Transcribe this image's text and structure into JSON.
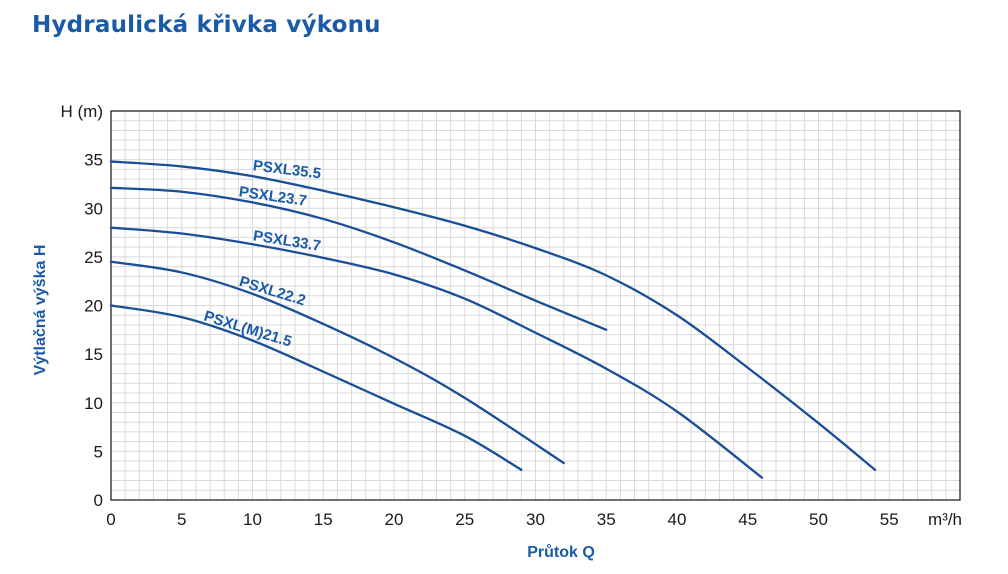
{
  "page": {
    "title": "Hydraulická křivka výkonu"
  },
  "chart_data": {
    "type": "line",
    "xlabel": "Průtok Q",
    "xunit": "m³/h",
    "ylabel": "Výtlačná výška H",
    "yunit": "H (m)",
    "xlim": [
      0,
      60
    ],
    "ylim": [
      0,
      40
    ],
    "x_ticks": [
      0,
      5,
      10,
      15,
      20,
      25,
      30,
      35,
      40,
      45,
      50,
      55
    ],
    "y_ticks": [
      0,
      5,
      10,
      15,
      20,
      25,
      30,
      35
    ],
    "grid": true,
    "minor_grid_step_x": 1,
    "minor_grid_step_y": 1,
    "colors": {
      "curve": "#1a4e96",
      "title": "#1a5aa7",
      "grid": "#d9d9d9"
    },
    "series": [
      {
        "name": "PSXL35.5",
        "x": [
          0,
          5,
          10,
          15,
          20,
          25,
          30,
          35,
          40,
          45,
          50,
          54
        ],
        "y": [
          34.8,
          34.3,
          33.3,
          31.8,
          30.1,
          28.2,
          25.9,
          23.1,
          19.0,
          13.6,
          7.9,
          3.1
        ]
      },
      {
        "name": "PSXL23.7",
        "x": [
          0,
          5,
          10,
          15,
          20,
          25,
          30,
          35
        ],
        "y": [
          32.1,
          31.7,
          30.6,
          28.9,
          26.5,
          23.6,
          20.5,
          17.5
        ]
      },
      {
        "name": "PSXL33.7",
        "x": [
          0,
          5,
          10,
          15,
          20,
          25,
          30,
          35,
          40,
          46
        ],
        "y": [
          28.0,
          27.4,
          26.3,
          24.9,
          23.2,
          20.7,
          17.2,
          13.5,
          9.1,
          2.3
        ]
      },
      {
        "name": "PSXL22.2",
        "x": [
          0,
          5,
          10,
          15,
          20,
          25,
          32
        ],
        "y": [
          24.5,
          23.4,
          21.2,
          18.1,
          14.6,
          10.5,
          3.8
        ]
      },
      {
        "name": "PSXL(M)21.5",
        "x": [
          0,
          5,
          10,
          15,
          20,
          25,
          29
        ],
        "y": [
          20.0,
          18.8,
          16.4,
          13.2,
          9.9,
          6.6,
          3.1
        ]
      }
    ]
  }
}
